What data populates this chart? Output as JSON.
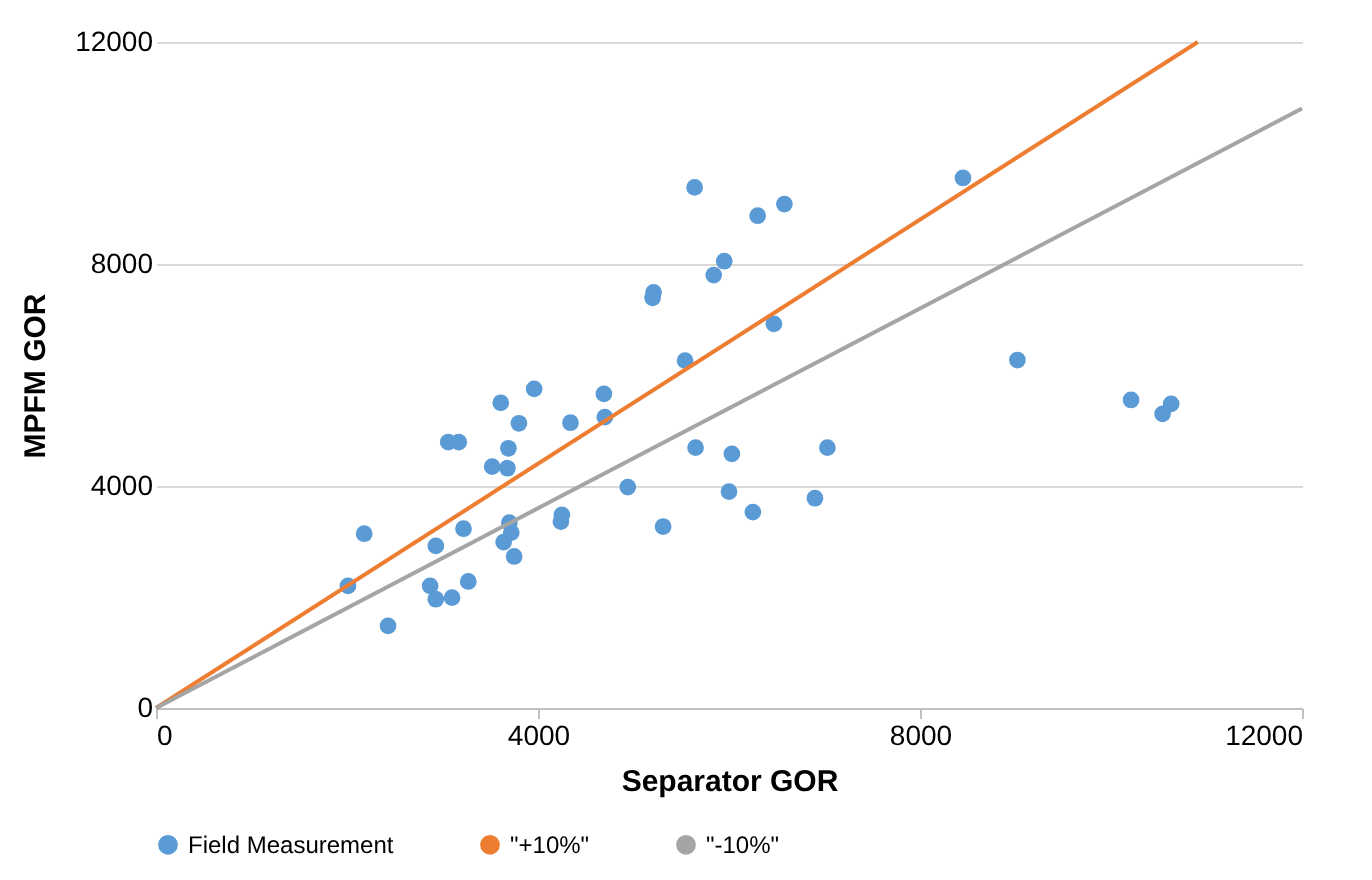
{
  "chart_data": {
    "type": "scatter",
    "xlabel": "Separator GOR",
    "ylabel": "MPFM GOR",
    "xlim": [
      0,
      12000
    ],
    "ylim": [
      0,
      12000
    ],
    "xticks": [
      0,
      4000,
      8000,
      12000
    ],
    "yticks": [
      0,
      4000,
      8000,
      12000
    ],
    "grid": "y",
    "legend": "bottom",
    "series": [
      {
        "name": "Field Measurement",
        "marker": "circle",
        "color": "#5b9bd5",
        "x": [
          2010,
          2180,
          2430,
          2870,
          2930,
          2930,
          3100,
          3270,
          3220,
          3060,
          3170,
          3520,
          3610,
          3680,
          3690,
          3700,
          3720,
          3640,
          3750,
          3800,
          3960,
          4340,
          4250,
          4240,
          4690,
          4700,
          4940,
          5210,
          5200,
          5310,
          5540,
          5640,
          5650,
          5840,
          5950,
          6030,
          6000,
          6250,
          6300,
          6580,
          6470,
          6900,
          7030,
          8450,
          9020,
          10210,
          10540,
          10630
        ],
        "values": [
          2200,
          3140,
          1480,
          2200,
          2920,
          1960,
          1990,
          2280,
          3230,
          4790,
          4790,
          4350,
          5500,
          4320,
          4680,
          3340,
          3160,
          2990,
          2730,
          5130,
          5750,
          5140,
          3480,
          3360,
          5660,
          5240,
          3980,
          7490,
          7390,
          3270,
          6260,
          9380,
          4690,
          7800,
          8050,
          4580,
          3900,
          3530,
          8870,
          9080,
          6920,
          3780,
          4690,
          9550,
          6270,
          5550,
          5300,
          5480
        ]
      },
      {
        "name": "\"+10%\"",
        "type": "line",
        "marker": "none",
        "color": "#ed7d31",
        "x": [
          0,
          10909
        ],
        "values": [
          0,
          12000
        ]
      },
      {
        "name": "\"-10%\"",
        "type": "line",
        "marker": "none",
        "color": "#a5a5a5",
        "x": [
          0,
          12000
        ],
        "values": [
          0,
          10800
        ]
      }
    ]
  }
}
